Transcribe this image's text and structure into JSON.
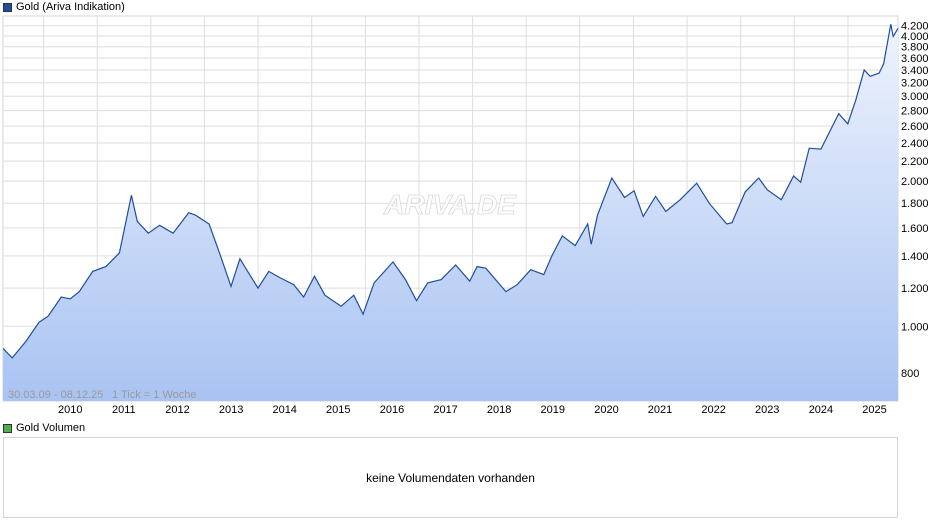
{
  "price_legend": {
    "label": "Gold (Ariva Indikation)",
    "color": "#1f4e9e"
  },
  "volume_legend": {
    "label": "Gold Volumen",
    "color": "#4caf50"
  },
  "watermark": "ARIVA.DE",
  "date_range": "30.03.09 - 08.12.25",
  "tick_info": "1 Tick = 1 Woche",
  "volume_message": "keine Volumendaten vorhanden",
  "chart_data": {
    "type": "area",
    "title": "Gold (Ariva Indikation)",
    "xlabel": "",
    "ylabel": "",
    "y_scale": "log",
    "ylim": [
      700,
      4400
    ],
    "x_ticks": [
      "2010",
      "2011",
      "2012",
      "2013",
      "2014",
      "2015",
      "2016",
      "2017",
      "2018",
      "2019",
      "2020",
      "2021",
      "2022",
      "2023",
      "2024",
      "2025"
    ],
    "y_ticks": [
      {
        "value": 800,
        "label": "800"
      },
      {
        "value": 1000,
        "label": "1.000"
      },
      {
        "value": 1200,
        "label": "1.200"
      },
      {
        "value": 1400,
        "label": "1.400"
      },
      {
        "value": 1600,
        "label": "1.600"
      },
      {
        "value": 1800,
        "label": "1.800"
      },
      {
        "value": 2000,
        "label": "2.000"
      },
      {
        "value": 2200,
        "label": "2.200"
      },
      {
        "value": 2400,
        "label": "2.400"
      },
      {
        "value": 2600,
        "label": "2.600"
      },
      {
        "value": 2800,
        "label": "2.800"
      },
      {
        "value": 3000,
        "label": "3.000"
      },
      {
        "value": 3200,
        "label": "3.200"
      },
      {
        "value": 3400,
        "label": "3.400"
      },
      {
        "value": 3600,
        "label": "3.600"
      },
      {
        "value": 3800,
        "label": "3.800"
      },
      {
        "value": 4000,
        "label": "4.000"
      },
      {
        "value": 4200,
        "label": "4.200"
      }
    ],
    "grid": true,
    "line_color": "#1f4e9e",
    "fill_top": "#eef3fd",
    "fill_bottom": "#a9c3f2",
    "series": [
      {
        "name": "Gold",
        "x": [
          "2009-03-30",
          "2009-06-01",
          "2009-09-01",
          "2009-12-01",
          "2010-02-01",
          "2010-05-01",
          "2010-07-01",
          "2010-09-01",
          "2010-12-01",
          "2011-03-01",
          "2011-06-01",
          "2011-08-22",
          "2011-10-01",
          "2011-12-15",
          "2012-03-01",
          "2012-06-01",
          "2012-09-15",
          "2012-11-01",
          "2013-02-01",
          "2013-04-20",
          "2013-06-30",
          "2013-08-30",
          "2013-12-31",
          "2014-03-15",
          "2014-06-01",
          "2014-09-01",
          "2014-11-07",
          "2015-01-20",
          "2015-04-01",
          "2015-07-20",
          "2015-10-15",
          "2015-12-17",
          "2016-03-01",
          "2016-07-08",
          "2016-10-01",
          "2016-12-15",
          "2017-03-01",
          "2017-06-01",
          "2017-09-08",
          "2017-12-12",
          "2018-02-01",
          "2018-04-01",
          "2018-08-16",
          "2018-11-01",
          "2019-02-01",
          "2019-05-01",
          "2019-06-25",
          "2019-09-04",
          "2019-12-01",
          "2020-02-24",
          "2020-03-19",
          "2020-05-01",
          "2020-08-06",
          "2020-11-01",
          "2021-01-05",
          "2021-03-08",
          "2021-06-01",
          "2021-08-09",
          "2021-11-15",
          "2022-03-08",
          "2022-06-01",
          "2022-09-28",
          "2022-11-03",
          "2023-02-01",
          "2023-05-04",
          "2023-07-01",
          "2023-10-05",
          "2023-12-28",
          "2024-02-14",
          "2024-04-12",
          "2024-07-01",
          "2024-10-30",
          "2024-12-31",
          "2025-02-24",
          "2025-04-22",
          "2025-06-01",
          "2025-08-01",
          "2025-09-01",
          "2025-10-20",
          "2025-11-05",
          "2025-12-08"
        ],
        "values": [
          900,
          860,
          930,
          1020,
          1050,
          1150,
          1140,
          1180,
          1300,
          1330,
          1420,
          1870,
          1650,
          1560,
          1620,
          1560,
          1720,
          1700,
          1630,
          1400,
          1210,
          1380,
          1200,
          1300,
          1260,
          1220,
          1150,
          1270,
          1160,
          1100,
          1160,
          1060,
          1230,
          1360,
          1250,
          1130,
          1230,
          1250,
          1340,
          1240,
          1330,
          1320,
          1180,
          1220,
          1310,
          1280,
          1400,
          1540,
          1470,
          1630,
          1480,
          1700,
          2030,
          1850,
          1910,
          1690,
          1860,
          1730,
          1830,
          1980,
          1800,
          1630,
          1640,
          1900,
          2030,
          1920,
          1830,
          2050,
          1990,
          2340,
          2330,
          2760,
          2630,
          2950,
          3400,
          3300,
          3350,
          3500,
          4230,
          3990,
          4150
        ]
      }
    ]
  }
}
